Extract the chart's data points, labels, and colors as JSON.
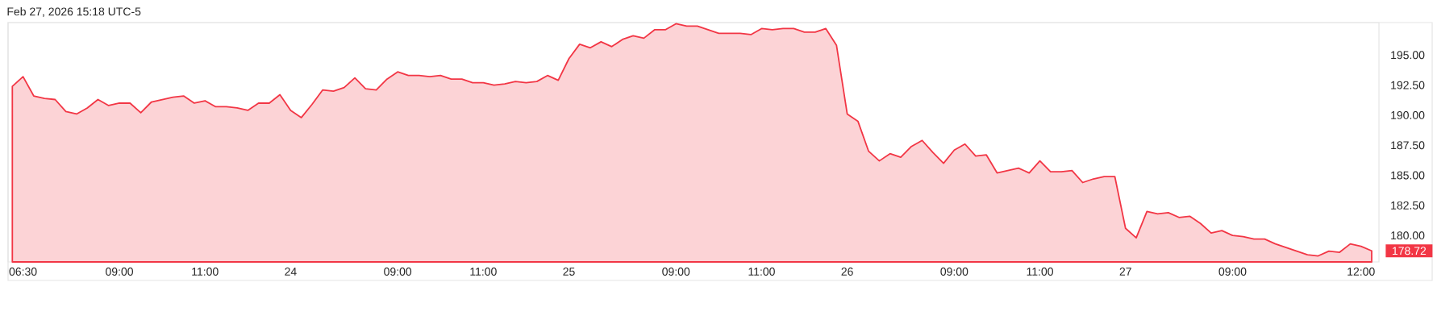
{
  "chart_data": {
    "type": "area",
    "color": "#f23645",
    "annotations": [
      "Feb 27, 2026 15:18 UTC-5",
      "178.72"
    ],
    "categories": [
      null,
      "06:30",
      null,
      null,
      null,
      null,
      null,
      null,
      null,
      null,
      "09:00",
      null,
      null,
      null,
      null,
      null,
      null,
      null,
      "11:00",
      null,
      null,
      null,
      null,
      null,
      null,
      null,
      "24",
      null,
      null,
      null,
      null,
      null,
      null,
      null,
      null,
      null,
      "09:00",
      null,
      null,
      null,
      null,
      null,
      null,
      null,
      "11:00",
      null,
      null,
      null,
      null,
      null,
      null,
      null,
      "25",
      null,
      null,
      null,
      null,
      null,
      null,
      null,
      null,
      null,
      "09:00",
      null,
      null,
      null,
      null,
      null,
      null,
      null,
      "11:00",
      null,
      null,
      null,
      null,
      null,
      null,
      null,
      "26",
      null,
      null,
      null,
      null,
      null,
      null,
      null,
      null,
      null,
      "09:00",
      null,
      null,
      null,
      null,
      null,
      null,
      null,
      "11:00",
      null,
      null,
      null,
      null,
      null,
      null,
      null,
      "27",
      null,
      null,
      null,
      null,
      null,
      null,
      null,
      null,
      null,
      "09:00",
      null,
      null,
      null,
      null,
      null,
      null,
      null,
      null,
      null,
      null,
      null,
      "12:00",
      null
    ],
    "values": [
      192.4,
      193.2,
      191.6,
      191.4,
      191.3,
      190.3,
      190.1,
      190.6,
      191.3,
      190.8,
      191.0,
      191.0,
      190.2,
      191.1,
      191.3,
      191.5,
      191.6,
      191.0,
      191.2,
      190.7,
      190.7,
      190.6,
      190.4,
      191.0,
      191.0,
      191.7,
      190.4,
      189.8,
      190.9,
      192.1,
      192.0,
      192.3,
      193.1,
      192.2,
      192.1,
      193.0,
      193.6,
      193.3,
      193.3,
      193.2,
      193.3,
      193.0,
      193.0,
      192.7,
      192.7,
      192.5,
      192.6,
      192.8,
      192.7,
      192.8,
      193.3,
      192.9,
      194.7,
      195.9,
      195.6,
      196.1,
      195.7,
      196.3,
      196.6,
      196.4,
      197.1,
      197.1,
      197.6,
      197.4,
      197.4,
      197.1,
      196.8,
      196.8,
      196.8,
      196.7,
      197.2,
      197.1,
      197.2,
      197.2,
      196.9,
      196.9,
      197.2,
      195.8,
      190.1,
      189.5,
      187.0,
      186.2,
      186.8,
      186.5,
      187.4,
      187.9,
      186.9,
      186.0,
      187.1,
      187.6,
      186.6,
      186.7,
      185.2,
      185.4,
      185.6,
      185.2,
      186.2,
      185.3,
      185.3,
      185.4,
      184.4,
      184.7,
      184.9,
      184.9,
      180.6,
      179.8,
      182.0,
      181.8,
      181.9,
      181.5,
      181.6,
      181.0,
      180.2,
      180.4,
      180.0,
      179.9,
      179.7,
      179.7,
      179.3,
      179.0,
      178.7,
      178.4,
      178.3,
      178.7,
      178.6,
      179.3,
      179.1,
      178.72
    ],
    "ylim": [
      177.8,
      197.7
    ],
    "yticks": [
      {
        "value": 180,
        "label": "180.00"
      },
      {
        "value": 182.5,
        "label": "182.50"
      },
      {
        "value": 185,
        "label": "185.00"
      },
      {
        "value": 187.5,
        "label": "187.50"
      },
      {
        "value": 190,
        "label": "190.00"
      },
      {
        "value": 192.5,
        "label": "192.50"
      },
      {
        "value": 195,
        "label": "195.00"
      }
    ]
  }
}
